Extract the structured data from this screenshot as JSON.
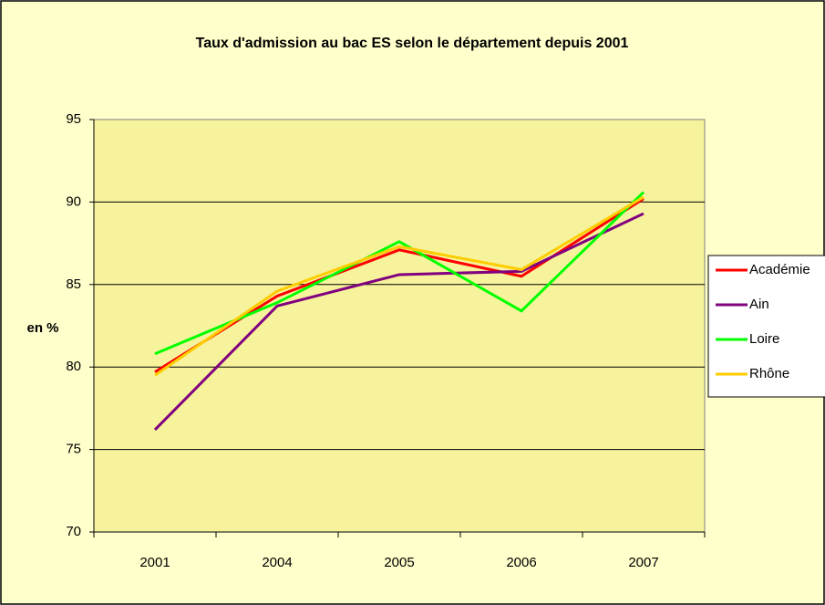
{
  "chart_data": {
    "type": "line",
    "title": "Taux d'admission au bac ES selon le département depuis 2001",
    "ylabel": "en %",
    "categories": [
      "2001",
      "2004",
      "2005",
      "2006",
      "2007"
    ],
    "series": [
      {
        "name": "Académie",
        "color": "#ff0000",
        "values": [
          79.7,
          84.3,
          87.1,
          85.5,
          90.2
        ]
      },
      {
        "name": "Ain",
        "color": "#800080",
        "values": [
          76.2,
          83.7,
          85.6,
          85.8,
          89.3
        ]
      },
      {
        "name": "Loire",
        "color": "#00ff00",
        "values": [
          80.8,
          83.9,
          87.6,
          83.4,
          90.6
        ]
      },
      {
        "name": "Rhône",
        "color": "#ffcc00",
        "values": [
          79.5,
          84.6,
          87.3,
          85.9,
          90.3
        ]
      }
    ],
    "ylim": [
      70,
      95
    ],
    "yticks": [
      70,
      75,
      80,
      85,
      90,
      95
    ],
    "grid": true,
    "legend": "right"
  }
}
